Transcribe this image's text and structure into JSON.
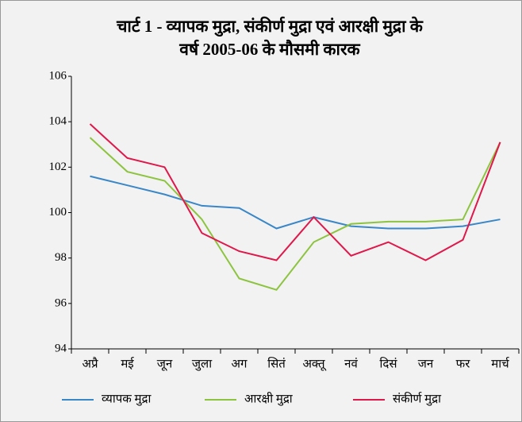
{
  "chart_data": {
    "type": "line",
    "title": [
      "चार्ट 1 - व्यापक मुद्रा, संकीर्ण मुद्रा एवं आरक्षी मुद्रा के",
      "वर्ष 2005-06 के मौसमी कारक"
    ],
    "categories": [
      "अप्रै",
      "मई",
      "जून",
      "जुला",
      "अग",
      "सितं",
      "अक्तू",
      "नवं",
      "दिसं",
      "जन",
      "फर",
      "मार्च"
    ],
    "series": [
      {
        "name": "व्यापक मुद्रा",
        "color": "#3a87c8",
        "values": [
          101.6,
          101.2,
          100.8,
          100.3,
          100.2,
          99.3,
          99.8,
          99.4,
          99.3,
          99.3,
          99.4,
          99.7
        ]
      },
      {
        "name": "आरक्षी मुद्रा",
        "color": "#8cc43f",
        "values": [
          103.3,
          101.8,
          101.4,
          99.7,
          97.1,
          96.6,
          98.7,
          99.5,
          99.6,
          99.6,
          99.7,
          103.1
        ]
      },
      {
        "name": "संकीर्ण मुद्रा",
        "color": "#e0174a",
        "values": [
          103.9,
          102.4,
          102.0,
          99.1,
          98.3,
          97.9,
          99.8,
          98.1,
          98.7,
          97.9,
          98.8,
          103.1
        ]
      }
    ],
    "ylim": [
      94,
      106
    ],
    "yticks": [
      94,
      96,
      98,
      100,
      102,
      104,
      106
    ],
    "grid": false,
    "legend": "bottom"
  }
}
